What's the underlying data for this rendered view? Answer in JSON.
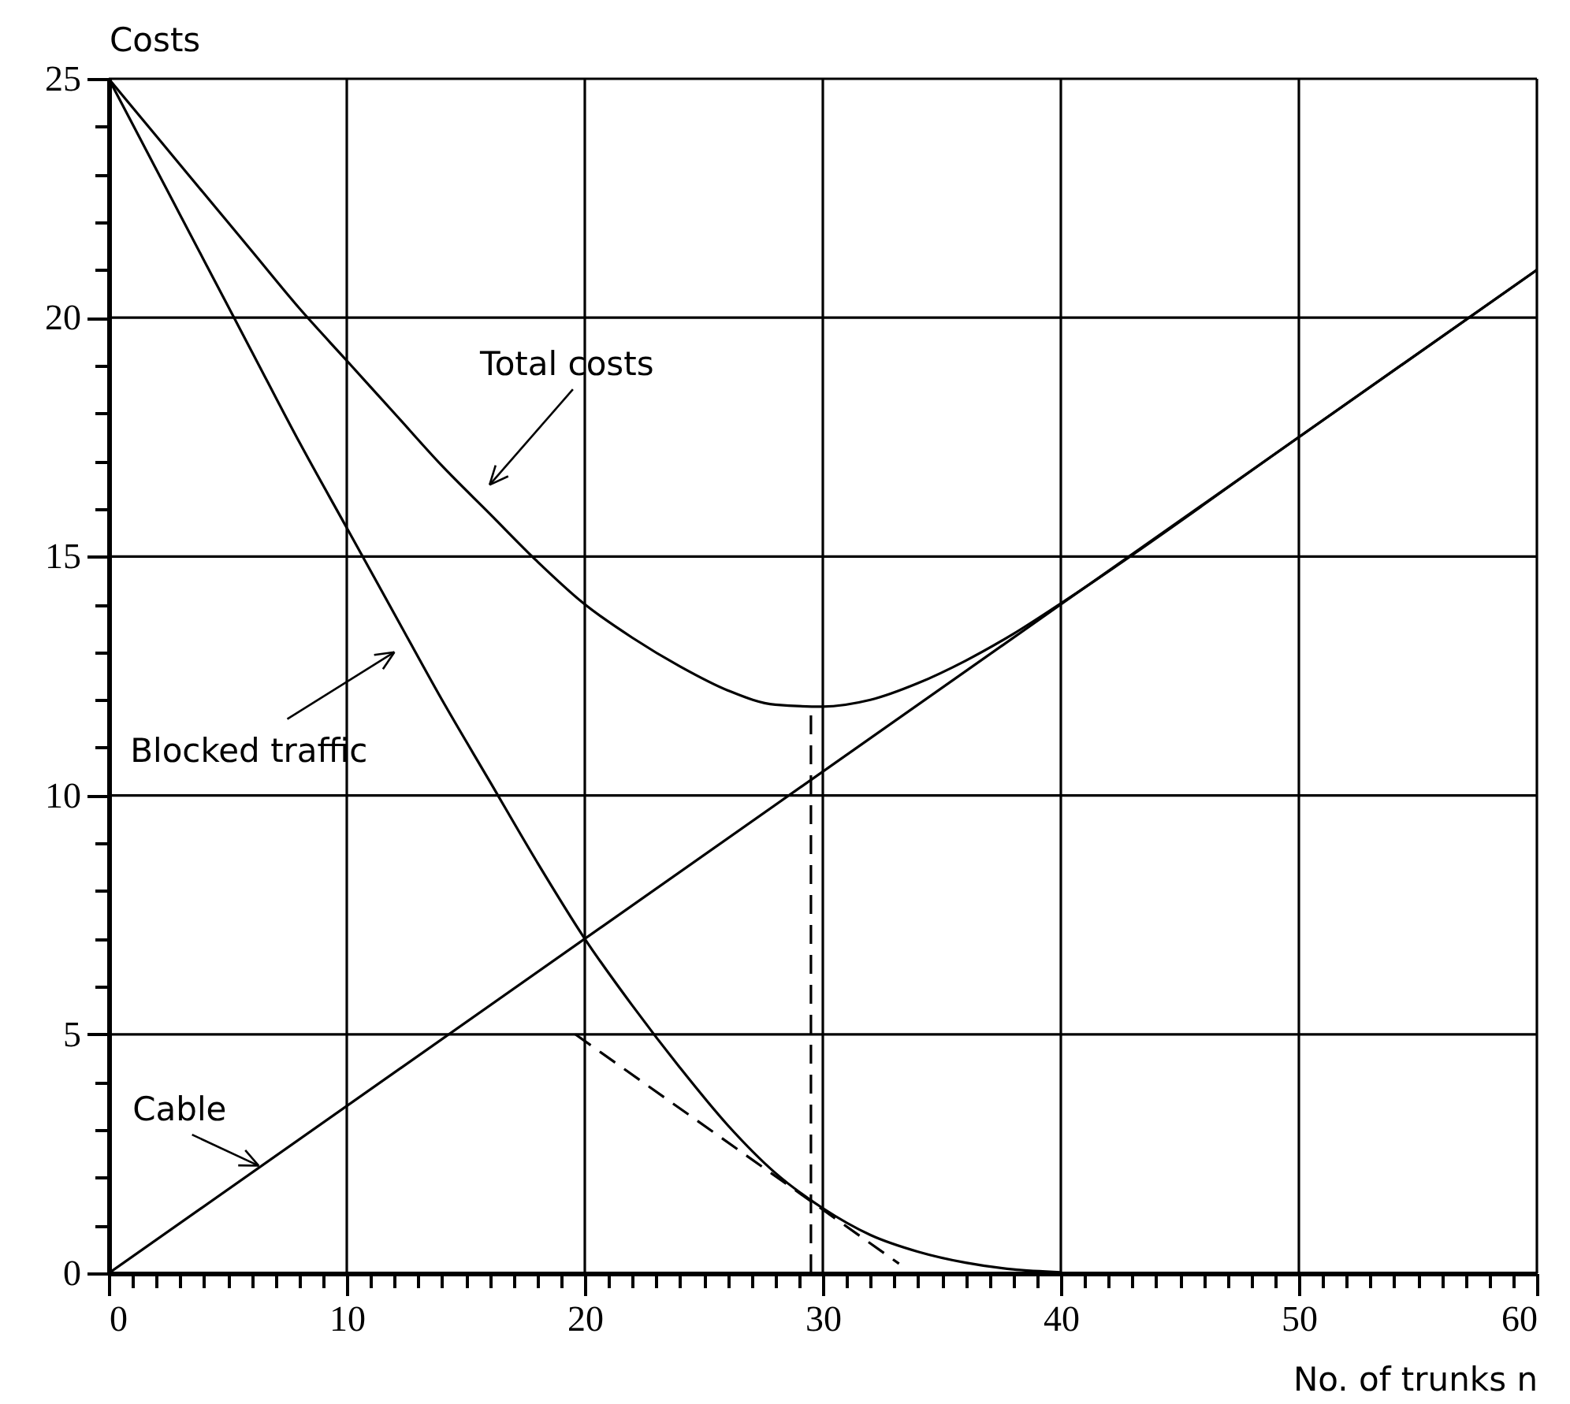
{
  "chart_data": {
    "type": "line",
    "xlabel": "No. of trunks n",
    "ylabel": "Costs",
    "xlim": [
      0,
      60
    ],
    "ylim": [
      0,
      25
    ],
    "xticks": [
      0,
      {
        "value": 1,
        "label": null
      },
      {
        "value": 2,
        "label": null
      },
      {
        "value": 3,
        "label": null
      },
      {
        "value": 4,
        "label": null
      },
      {
        "value": 5,
        "label": null
      },
      {
        "value": 6,
        "label": null
      },
      {
        "value": 7,
        "label": null
      },
      {
        "value": 8,
        "label": null
      },
      {
        "value": 9,
        "label": null
      },
      10,
      {
        "value": 11,
        "label": null
      },
      {
        "value": 12,
        "label": null
      },
      {
        "value": 13,
        "label": null
      },
      {
        "value": 14,
        "label": null
      },
      {
        "value": 15,
        "label": null
      },
      {
        "value": 16,
        "label": null
      },
      {
        "value": 17,
        "label": null
      },
      {
        "value": 18,
        "label": null
      },
      {
        "value": 19,
        "label": null
      },
      20,
      {
        "value": 21,
        "label": null
      },
      {
        "value": 22,
        "label": null
      },
      {
        "value": 23,
        "label": null
      },
      {
        "value": 24,
        "label": null
      },
      {
        "value": 25,
        "label": null
      },
      {
        "value": 26,
        "label": null
      },
      {
        "value": 27,
        "label": null
      },
      {
        "value": 28,
        "label": null
      },
      {
        "value": 29,
        "label": null
      },
      30,
      {
        "value": 31,
        "label": null
      },
      {
        "value": 32,
        "label": null
      },
      {
        "value": 33,
        "label": null
      },
      {
        "value": 34,
        "label": null
      },
      {
        "value": 35,
        "label": null
      },
      {
        "value": 36,
        "label": null
      },
      {
        "value": 37,
        "label": null
      },
      {
        "value": 38,
        "label": null
      },
      {
        "value": 39,
        "label": null
      },
      40,
      {
        "value": 41,
        "label": null
      },
      {
        "value": 42,
        "label": null
      },
      {
        "value": 43,
        "label": null
      },
      {
        "value": 44,
        "label": null
      },
      {
        "value": 45,
        "label": null
      },
      {
        "value": 46,
        "label": null
      },
      {
        "value": 47,
        "label": null
      },
      {
        "value": 48,
        "label": null
      },
      {
        "value": 49,
        "label": null
      },
      50,
      {
        "value": 51,
        "label": null
      },
      {
        "value": 52,
        "label": null
      },
      {
        "value": 53,
        "label": null
      },
      {
        "value": 54,
        "label": null
      },
      {
        "value": 55,
        "label": null
      },
      {
        "value": 56,
        "label": null
      },
      {
        "value": 57,
        "label": null
      },
      {
        "value": 58,
        "label": null
      },
      {
        "value": 59,
        "label": null
      },
      60
    ],
    "yticks": [
      0,
      {
        "value": 1,
        "label": null
      },
      {
        "value": 2,
        "label": null
      },
      {
        "value": 3,
        "label": null
      },
      {
        "value": 4,
        "label": null
      },
      5,
      {
        "value": 6,
        "label": null
      },
      {
        "value": 7,
        "label": null
      },
      {
        "value": 8,
        "label": null
      },
      {
        "value": 9,
        "label": null
      },
      10,
      {
        "value": 11,
        "label": null
      },
      {
        "value": 12,
        "label": null
      },
      {
        "value": 13,
        "label": null
      },
      {
        "value": 14,
        "label": null
      },
      15,
      {
        "value": 16,
        "label": null
      },
      {
        "value": 17,
        "label": null
      },
      {
        "value": 18,
        "label": null
      },
      {
        "value": 19,
        "label": null
      },
      20,
      {
        "value": 21,
        "label": null
      },
      {
        "value": 22,
        "label": null
      },
      {
        "value": 23,
        "label": null
      },
      {
        "value": 24,
        "label": null
      },
      25
    ],
    "grid": true,
    "marker": "none",
    "series": [
      {
        "name": "Total costs",
        "color": "#000000",
        "x": [
          0,
          2,
          4,
          6,
          8,
          10,
          12,
          14,
          16,
          18,
          20,
          22,
          24,
          26,
          28,
          30,
          32,
          34,
          36,
          38,
          40,
          50,
          60
        ],
        "values": [
          25,
          23.8,
          22.6,
          21.4,
          20.2,
          19.1,
          18.0,
          16.9,
          15.9,
          14.9,
          14.0,
          13.3,
          12.7,
          12.2,
          11.9,
          11.86,
          12.0,
          12.35,
          12.82,
          13.38,
          14.02,
          17.5,
          21
        ]
      },
      {
        "name": "Blocked traffic",
        "color": "#000000",
        "x": [
          0,
          2,
          4,
          6,
          8,
          10,
          12,
          14,
          16,
          18,
          20,
          22,
          24,
          26,
          28,
          30,
          32,
          34,
          36,
          38,
          40
        ],
        "values": [
          25,
          23.1,
          21.2,
          19.3,
          17.4,
          15.6,
          13.8,
          12.0,
          10.3,
          8.6,
          7.0,
          5.6,
          4.3,
          3.1,
          2.1,
          1.36,
          0.8,
          0.45,
          0.22,
          0.08,
          0.02
        ]
      },
      {
        "name": "Cable",
        "color": "#000000",
        "x": [
          0,
          60
        ],
        "values": [
          0,
          21
        ]
      },
      {
        "color": "#000000",
        "line_style": "dashed",
        "x": [
          19.6,
          33.2
        ],
        "values": [
          5,
          0.2
        ]
      },
      {
        "color": "#000000",
        "line_style": "dashed",
        "x": [
          29.5,
          29.5
        ],
        "values": [
          0,
          11.85
        ]
      }
    ]
  }
}
